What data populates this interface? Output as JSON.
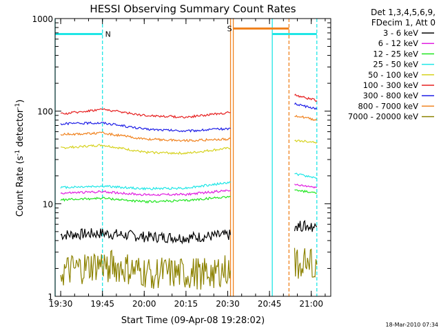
{
  "chart_data": {
    "type": "line",
    "title": "HESSI Observing Summary Count Rates",
    "xlabel": "Start Time (09-Apr-08 19:28:02)",
    "ylabel_main": "Count Rate (s",
    "ylabel_sup1": "-1",
    "ylabel_mid": " detector",
    "ylabel_sup2": "-1",
    "ylabel_end": ")",
    "y_scale": "log",
    "ylim": [
      1,
      1000
    ],
    "xlim": [
      "19:28",
      "21:07"
    ],
    "x_ticks": [
      "19:30",
      "19:45",
      "20:00",
      "20:15",
      "20:30",
      "20:45",
      "21:00"
    ],
    "y_ticks": [
      "1",
      "10",
      "100",
      "1000"
    ],
    "grid": false,
    "legend_header": [
      "Det 1,3,4,5,6,9,",
      "FDecim 1, Att 0"
    ],
    "legend_position": "right",
    "footer": "18-Mar-2010 07:34",
    "series": [
      {
        "name": "3 - 6 keV",
        "color": "#000000",
        "values": [
          {
            "t": "19:30",
            "v": 4.6
          },
          {
            "t": "19:45",
            "v": 4.8
          },
          {
            "t": "20:00",
            "v": 4.4
          },
          {
            "t": "20:15",
            "v": 4.3
          },
          {
            "t": "20:31",
            "v": 4.6
          },
          {
            "t": "20:54",
            "v": 5.8
          },
          {
            "t": "21:02",
            "v": 5.6
          }
        ]
      },
      {
        "name": "6 - 12 keV",
        "color": "#e01ee0",
        "values": [
          {
            "t": "19:30",
            "v": 13
          },
          {
            "t": "19:45",
            "v": 13.5
          },
          {
            "t": "20:00",
            "v": 12.5
          },
          {
            "t": "20:15",
            "v": 12.6
          },
          {
            "t": "20:31",
            "v": 14
          },
          {
            "t": "20:54",
            "v": 16
          },
          {
            "t": "21:02",
            "v": 15
          }
        ]
      },
      {
        "name": "12 - 25 keV",
        "color": "#1ee61e",
        "values": [
          {
            "t": "19:30",
            "v": 11
          },
          {
            "t": "19:45",
            "v": 11.5
          },
          {
            "t": "20:00",
            "v": 10.5
          },
          {
            "t": "20:15",
            "v": 10.8
          },
          {
            "t": "20:31",
            "v": 12
          },
          {
            "t": "20:54",
            "v": 14
          },
          {
            "t": "21:02",
            "v": 13
          }
        ]
      },
      {
        "name": "25 - 50 keV",
        "color": "#1ee6e6",
        "values": [
          {
            "t": "19:30",
            "v": 15
          },
          {
            "t": "19:45",
            "v": 15.5
          },
          {
            "t": "20:00",
            "v": 14.5
          },
          {
            "t": "20:15",
            "v": 14.8
          },
          {
            "t": "20:31",
            "v": 17
          },
          {
            "t": "20:54",
            "v": 21
          },
          {
            "t": "21:02",
            "v": 19
          }
        ]
      },
      {
        "name": "50 - 100 keV",
        "color": "#d6d21e",
        "values": [
          {
            "t": "19:30",
            "v": 40
          },
          {
            "t": "19:45",
            "v": 43
          },
          {
            "t": "20:00",
            "v": 36
          },
          {
            "t": "20:15",
            "v": 35
          },
          {
            "t": "20:31",
            "v": 40
          },
          {
            "t": "20:54",
            "v": 48
          },
          {
            "t": "21:02",
            "v": 46
          }
        ]
      },
      {
        "name": "100 - 300 keV",
        "color": "#e61e1e",
        "values": [
          {
            "t": "19:30",
            "v": 93
          },
          {
            "t": "19:45",
            "v": 105
          },
          {
            "t": "20:00",
            "v": 90
          },
          {
            "t": "20:15",
            "v": 86
          },
          {
            "t": "20:31",
            "v": 97
          },
          {
            "t": "20:54",
            "v": 150
          },
          {
            "t": "21:02",
            "v": 130
          }
        ]
      },
      {
        "name": "300 - 800 keV",
        "color": "#1e1ee6",
        "values": [
          {
            "t": "19:30",
            "v": 73
          },
          {
            "t": "19:45",
            "v": 75
          },
          {
            "t": "20:00",
            "v": 64
          },
          {
            "t": "20:15",
            "v": 61
          },
          {
            "t": "20:31",
            "v": 65
          },
          {
            "t": "20:54",
            "v": 120
          },
          {
            "t": "21:02",
            "v": 105
          }
        ]
      },
      {
        "name": "800 - 7000 keV",
        "color": "#f0821e",
        "values": [
          {
            "t": "19:30",
            "v": 56
          },
          {
            "t": "19:45",
            "v": 58
          },
          {
            "t": "20:00",
            "v": 50
          },
          {
            "t": "20:15",
            "v": 48
          },
          {
            "t": "20:31",
            "v": 50
          },
          {
            "t": "20:54",
            "v": 90
          },
          {
            "t": "21:02",
            "v": 80
          }
        ]
      },
      {
        "name": "7000 - 20000 keV",
        "color": "#8c8200",
        "values": [
          {
            "t": "19:30",
            "v": 1.8
          },
          {
            "t": "19:45",
            "v": 2.2
          },
          {
            "t": "20:00",
            "v": 1.8
          },
          {
            "t": "20:15",
            "v": 1.7
          },
          {
            "t": "20:31",
            "v": 1.9
          },
          {
            "t": "20:54",
            "v": 2.3
          },
          {
            "t": "21:02",
            "v": 2.2
          }
        ]
      }
    ],
    "flags": [
      {
        "label": "N",
        "color": "#1ee6e6",
        "start": "19:28",
        "end": "19:45",
        "v": 680
      },
      {
        "label": "",
        "color": "#1ee6e6",
        "start": "20:46",
        "end": "21:02",
        "v": 680
      },
      {
        "label": "S",
        "color": "#f0821e",
        "start": "20:32",
        "end": "20:52",
        "v": 780
      }
    ],
    "markers": [
      {
        "t": "19:28",
        "color": "#1ee6e6",
        "style": "solid"
      },
      {
        "t": "19:45",
        "color": "#1ee6e6",
        "style": "dashed"
      },
      {
        "t": "20:31",
        "color": "#f0821e",
        "style": "solid"
      },
      {
        "t": "20:32",
        "color": "#f0821e",
        "style": "solid"
      },
      {
        "t": "20:46",
        "color": "#1ee6e6",
        "style": "solid"
      },
      {
        "t": "20:52",
        "color": "#f0821e",
        "style": "dashed"
      },
      {
        "t": "21:02",
        "color": "#1ee6e6",
        "style": "dashed"
      }
    ]
  }
}
